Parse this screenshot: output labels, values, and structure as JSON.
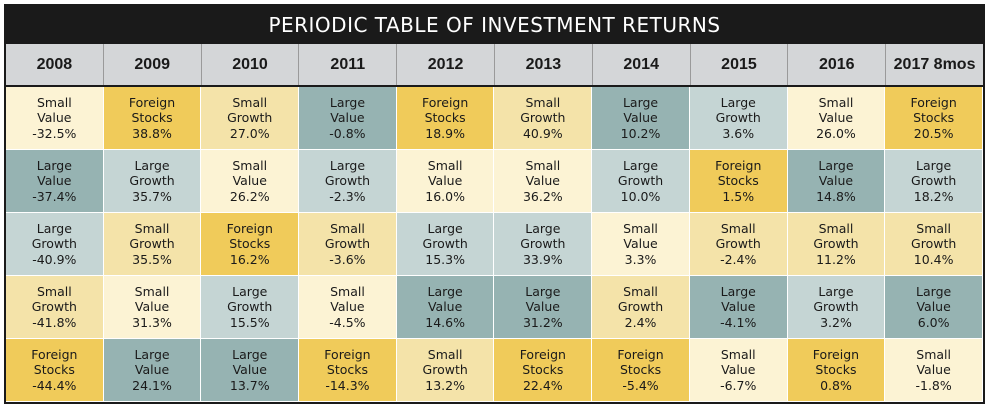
{
  "title": "PERIODIC TABLE OF INVESTMENT RETURNS",
  "colors": {
    "Small Value": "#fcf3d4",
    "Foreign Stocks": "#f0cb5a",
    "Small Growth": "#f4e3a9",
    "Large Value": "#96b3b2",
    "Large Growth": "#c5d5d4"
  },
  "chart_data": {
    "type": "table",
    "title": "PERIODIC TABLE OF INVESTMENT RETURNS",
    "columns": [
      "2008",
      "2009",
      "2010",
      "2011",
      "2012",
      "2013",
      "2014",
      "2015",
      "2016",
      "2017 8mos"
    ],
    "rows": [
      [
        {
          "category": "Small Value",
          "value": "-32.5%"
        },
        {
          "category": "Foreign Stocks",
          "value": "38.8%"
        },
        {
          "category": "Small Growth",
          "value": "27.0%"
        },
        {
          "category": "Large Value",
          "value": "-0.8%"
        },
        {
          "category": "Foreign Stocks",
          "value": "18.9%"
        },
        {
          "category": "Small Growth",
          "value": "40.9%"
        },
        {
          "category": "Large Value",
          "value": "10.2%"
        },
        {
          "category": "Large Growth",
          "value": "3.6%"
        },
        {
          "category": "Small Value",
          "value": "26.0%"
        },
        {
          "category": "Foreign Stocks",
          "value": "20.5%"
        }
      ],
      [
        {
          "category": "Large Value",
          "value": "-37.4%"
        },
        {
          "category": "Large Growth",
          "value": "35.7%"
        },
        {
          "category": "Small Value",
          "value": "26.2%"
        },
        {
          "category": "Large Growth",
          "value": "-2.3%"
        },
        {
          "category": "Small Value",
          "value": "16.0%"
        },
        {
          "category": "Small Value",
          "value": "36.2%"
        },
        {
          "category": "Large Growth",
          "value": "10.0%"
        },
        {
          "category": "Foreign Stocks",
          "value": "1.5%"
        },
        {
          "category": "Large Value",
          "value": "14.8%"
        },
        {
          "category": "Large Growth",
          "value": "18.2%"
        }
      ],
      [
        {
          "category": "Large Growth",
          "value": "-40.9%"
        },
        {
          "category": "Small Growth",
          "value": "35.5%"
        },
        {
          "category": "Foreign Stocks",
          "value": "16.2%"
        },
        {
          "category": "Small Growth",
          "value": "-3.6%"
        },
        {
          "category": "Large Growth",
          "value": "15.3%"
        },
        {
          "category": "Large Growth",
          "value": "33.9%"
        },
        {
          "category": "Small Value",
          "value": "3.3%"
        },
        {
          "category": "Small Growth",
          "value": "-2.4%"
        },
        {
          "category": "Small Growth",
          "value": "11.2%"
        },
        {
          "category": "Small Growth",
          "value": "10.4%"
        }
      ],
      [
        {
          "category": "Small Growth",
          "value": "-41.8%"
        },
        {
          "category": "Small Value",
          "value": "31.3%"
        },
        {
          "category": "Large Growth",
          "value": "15.5%"
        },
        {
          "category": "Small Value",
          "value": "-4.5%"
        },
        {
          "category": "Large Value",
          "value": "14.6%"
        },
        {
          "category": "Large Value",
          "value": "31.2%"
        },
        {
          "category": "Small Growth",
          "value": "2.4%"
        },
        {
          "category": "Large Value",
          "value": "-4.1%"
        },
        {
          "category": "Large Growth",
          "value": "3.2%"
        },
        {
          "category": "Large Value",
          "value": "6.0%"
        }
      ],
      [
        {
          "category": "Foreign Stocks",
          "value": "-44.4%"
        },
        {
          "category": "Large Value",
          "value": "24.1%"
        },
        {
          "category": "Large Value",
          "value": "13.7%"
        },
        {
          "category": "Foreign Stocks",
          "value": "-14.3%"
        },
        {
          "category": "Small Growth",
          "value": "13.2%"
        },
        {
          "category": "Foreign Stocks",
          "value": "22.4%"
        },
        {
          "category": "Foreign Stocks",
          "value": "-5.4%"
        },
        {
          "category": "Small Value",
          "value": "-6.7%"
        },
        {
          "category": "Foreign Stocks",
          "value": "0.8%"
        },
        {
          "category": "Small Value",
          "value": "-1.8%"
        }
      ]
    ]
  }
}
